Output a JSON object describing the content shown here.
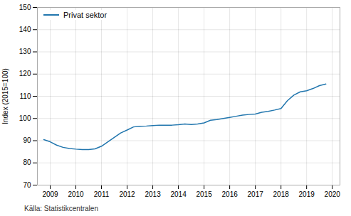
{
  "chart_data": {
    "type": "line",
    "ylabel": "Index (2015=100)",
    "annotations": [
      "Källa: Statistikcentralen"
    ],
    "x": [
      2008.75,
      2009.0,
      2009.25,
      2009.5,
      2009.75,
      2010.0,
      2010.25,
      2010.5,
      2010.75,
      2011.0,
      2011.25,
      2011.5,
      2011.75,
      2012.0,
      2012.25,
      2012.5,
      2012.75,
      2013.0,
      2013.25,
      2013.5,
      2013.75,
      2014.0,
      2014.25,
      2014.5,
      2014.75,
      2015.0,
      2015.25,
      2015.5,
      2015.75,
      2016.0,
      2016.25,
      2016.5,
      2016.75,
      2017.0,
      2017.25,
      2017.5,
      2017.75,
      2018.0,
      2018.25,
      2018.5,
      2018.75,
      2019.0,
      2019.25,
      2019.5,
      2019.75
    ],
    "series": [
      {
        "name": "Privat sektor",
        "color": "#2176ae",
        "values": [
          90.5,
          89.5,
          88.0,
          87.0,
          86.5,
          86.2,
          86.0,
          86.0,
          86.3,
          87.5,
          89.5,
          91.5,
          93.5,
          94.8,
          96.2,
          96.5,
          96.6,
          96.8,
          97.0,
          97.0,
          97.0,
          97.2,
          97.5,
          97.3,
          97.5,
          98.0,
          99.2,
          99.5,
          100.0,
          100.5,
          101.0,
          101.5,
          101.8,
          102.0,
          102.8,
          103.2,
          103.8,
          104.5,
          108.0,
          110.5,
          112.0,
          112.5,
          113.5,
          114.8,
          115.5
        ]
      }
    ],
    "xlim": [
      2008.5,
      2020.3
    ],
    "xticks": [
      2009,
      2010,
      2011,
      2012,
      2013,
      2014,
      2015,
      2016,
      2017,
      2018,
      2019,
      2020
    ],
    "ylim": [
      70,
      150
    ],
    "yticks": [
      70,
      80,
      90,
      100,
      110,
      120,
      130,
      140,
      150
    ],
    "grid": true,
    "legend": "upper left"
  }
}
